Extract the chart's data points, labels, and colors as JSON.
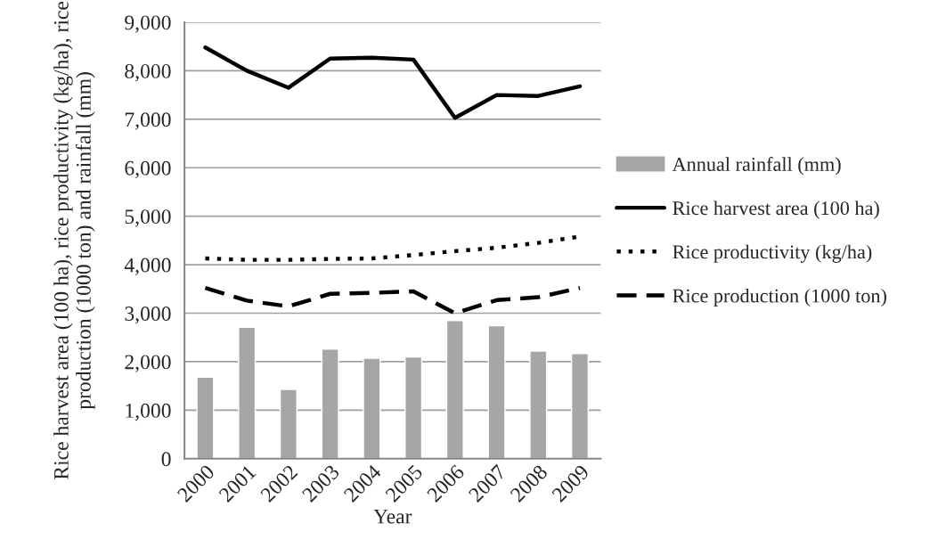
{
  "chart_data": {
    "type": "bar",
    "xlabel": "Year",
    "ylabel": "Rice harvest area (100 ha), rice productivity (kg/ha), rice production (1000 ton) and rainfall (mm)",
    "categories": [
      "2000",
      "2001",
      "2002",
      "2003",
      "2004",
      "2005",
      "2006",
      "2007",
      "2008",
      "2009"
    ],
    "series": [
      {
        "name": "Annual rainfall (mm)",
        "color": "#a6a6a6",
        "values": [
          1680,
          2710,
          1430,
          2260,
          2070,
          2100,
          2850,
          2740,
          2220,
          2170
        ]
      },
      {
        "name": "Rice harvest area (100 ha)",
        "type": "line",
        "line_style": "solid",
        "color": "#000000",
        "values": [
          8480,
          8000,
          7650,
          8250,
          8270,
          8230,
          7030,
          7500,
          7480,
          7680
        ]
      },
      {
        "name": "Rice productivity (kg/ha)",
        "type": "line",
        "line_style": "dotted",
        "color": "#000000",
        "values": [
          4130,
          4100,
          4100,
          4120,
          4130,
          4200,
          4280,
          4350,
          4450,
          4580
        ]
      },
      {
        "name": "Rice production (1000 ton)",
        "type": "line",
        "line_style": "dashed",
        "color": "#000000",
        "values": [
          3520,
          3260,
          3140,
          3400,
          3420,
          3450,
          3000,
          3270,
          3330,
          3520
        ]
      }
    ],
    "ylim": [
      0,
      9000
    ],
    "yticks": [
      {
        "value": 0,
        "label": "0"
      },
      {
        "value": 1000,
        "label": "1,000"
      },
      {
        "value": 2000,
        "label": "2,000"
      },
      {
        "value": 3000,
        "label": "3,000"
      },
      {
        "value": 4000,
        "label": "4,000"
      },
      {
        "value": 5000,
        "label": "5,000"
      },
      {
        "value": 6000,
        "label": "6,000"
      },
      {
        "value": 7000,
        "label": "7,000"
      },
      {
        "value": 8000,
        "label": "8,000"
      },
      {
        "value": 9000,
        "label": "9,000"
      }
    ],
    "grid": "y",
    "legend": "right"
  }
}
